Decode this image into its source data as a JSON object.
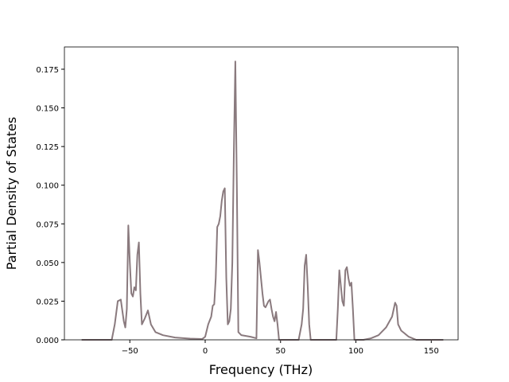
{
  "chart_data": {
    "type": "line",
    "x_label": "Frequency (THz)",
    "y_label": "Partial Density of States",
    "x": [
      -82,
      -62,
      -60,
      -58,
      -56,
      -54,
      -53,
      -52,
      -51,
      -50,
      -49,
      -48,
      -47,
      -46,
      -45,
      -44,
      -43,
      -42,
      -40,
      -38,
      -36,
      -33,
      -28,
      -20,
      -10,
      -2,
      0,
      2,
      4,
      5,
      6,
      7,
      8,
      9,
      10,
      11,
      12,
      13,
      14,
      15,
      16,
      17,
      18,
      19,
      20,
      21,
      22,
      24,
      30,
      34,
      35,
      36,
      37,
      38,
      39,
      40,
      42,
      43,
      44,
      45,
      46,
      47,
      48,
      49,
      62,
      64,
      65,
      66,
      67,
      68,
      69,
      70,
      87,
      88,
      89,
      90,
      91,
      92,
      93,
      94,
      95,
      96,
      97,
      98,
      99,
      105,
      110,
      115,
      120,
      124,
      126,
      127,
      128,
      130,
      135,
      140,
      158
    ],
    "series": [
      {
        "color": "#8a7a7e",
        "values": [
          0,
          0,
          0.01,
          0.025,
          0.026,
          0.012,
          0.008,
          0.02,
          0.074,
          0.05,
          0.03,
          0.028,
          0.034,
          0.032,
          0.055,
          0.063,
          0.03,
          0.01,
          0.014,
          0.019,
          0.01,
          0.005,
          0.003,
          0.0015,
          0.0008,
          0.0005,
          0.002,
          0.01,
          0.015,
          0.022,
          0.023,
          0.04,
          0.073,
          0.075,
          0.08,
          0.09,
          0.096,
          0.098,
          0.04,
          0.01,
          0.012,
          0.02,
          0.05,
          0.12,
          0.18,
          0.1,
          0.005,
          0.003,
          0.002,
          0.001,
          0.058,
          0.05,
          0.04,
          0.03,
          0.022,
          0.021,
          0.025,
          0.026,
          0.02,
          0.015,
          0.012,
          0.018,
          0.01,
          0,
          0,
          0.01,
          0.02,
          0.048,
          0.055,
          0.035,
          0.01,
          0,
          0,
          0.02,
          0.045,
          0.035,
          0.025,
          0.022,
          0.045,
          0.047,
          0.04,
          0.035,
          0.037,
          0.02,
          0,
          0,
          0.001,
          0.003,
          0.008,
          0.015,
          0.024,
          0.022,
          0.01,
          0.006,
          0.002,
          0,
          0
        ]
      }
    ],
    "xlim": [
      -93.4,
      167.8
    ],
    "ylim": [
      0,
      0.1894
    ],
    "xticks": [
      {
        "value": -50,
        "label": "−50"
      },
      0,
      50,
      100,
      150
    ],
    "yticks": [
      {
        "value": 0,
        "label": "0.000"
      },
      {
        "value": 0.025,
        "label": "0.025"
      },
      {
        "value": 0.05,
        "label": "0.050"
      },
      {
        "value": 0.075,
        "label": "0.075"
      },
      {
        "value": 0.1,
        "label": "0.100"
      },
      {
        "value": 0.125,
        "label": "0.125"
      },
      {
        "value": 0.15,
        "label": "0.150"
      },
      {
        "value": 0.175,
        "label": "0.175"
      }
    ],
    "grid": false
  }
}
